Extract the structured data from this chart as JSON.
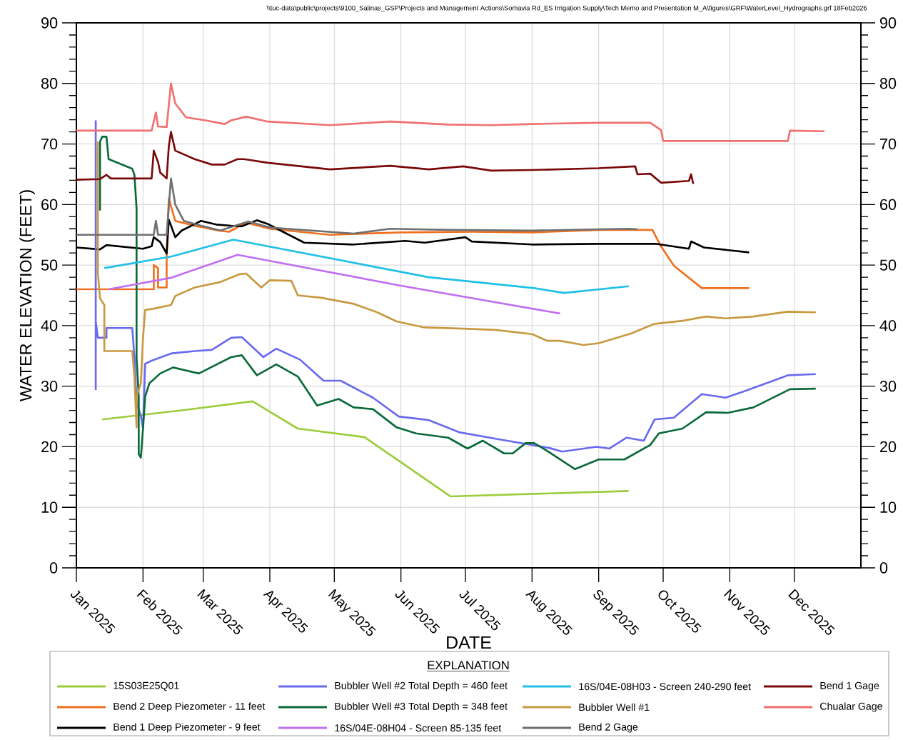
{
  "chart_data": {
    "type": "line",
    "xlabel": "DATE",
    "ylabel": "WATER ELEVATION (FEET)",
    "legend_title": "EXPLANATION",
    "legend": "bottom",
    "grid": true,
    "annotations": [
      "\\\\tuc-data\\public\\projects\\9100_Salinas_GSP\\Projects and Management Actions\\Somavia Rd_ES Irrigation Supply\\Tech Memo and Presentation M_A\\figures\\GRF\\WaterLevel_Hydrographs.grf 18Feb2026"
    ],
    "xlim": [
      "2025-01-01",
      "2026-01-01"
    ],
    "xticks": [
      {
        "value": "2025-01-01",
        "label": "Jan 2025"
      },
      {
        "value": "2025-02-01",
        "label": "Feb 2025"
      },
      {
        "value": "2025-03-01",
        "label": "Mar 2025"
      },
      {
        "value": "2025-04-01",
        "label": "Apr 2025"
      },
      {
        "value": "2025-05-01",
        "label": "May 2025"
      },
      {
        "value": "2025-06-01",
        "label": "Jun 2025"
      },
      {
        "value": "2025-07-01",
        "label": "Jul 2025"
      },
      {
        "value": "2025-08-01",
        "label": "Aug 2025"
      },
      {
        "value": "2025-09-01",
        "label": "Sep 2025"
      },
      {
        "value": "2025-10-01",
        "label": "Oct 2025"
      },
      {
        "value": "2025-11-01",
        "label": "Nov 2025"
      },
      {
        "value": "2025-12-01",
        "label": "Dec 2025"
      }
    ],
    "ylim": [
      0,
      90
    ],
    "yticks": [
      0,
      10,
      20,
      30,
      40,
      50,
      60,
      70,
      80,
      90
    ],
    "y2lim": [
      0,
      90
    ],
    "y2ticks": [
      0,
      10,
      20,
      30,
      40,
      50,
      60,
      70,
      80,
      90
    ],
    "series": [
      {
        "name": "15S03E25Q01",
        "color": "#9ccc3c",
        "x": [
          "2025-01-13",
          "2025-02-21",
          "2025-03-24",
          "2025-04-14",
          "2025-05-15",
          "2025-06-24",
          "2025-09-15"
        ],
        "values": [
          24.5,
          26.1,
          27.5,
          23.0,
          21.6,
          11.8,
          12.7
        ]
      },
      {
        "name": "Bend 2 Deep Piezometer - 11 feet",
        "color": "#f07020",
        "x": [
          "2025-01-01",
          "2025-02-06",
          "2025-02-06",
          "2025-02-08",
          "2025-02-08",
          "2025-02-12",
          "2025-02-12",
          "2025-02-13",
          "2025-02-16",
          "2025-02-25",
          "2025-03-08",
          "2025-03-13",
          "2025-03-21",
          "2025-04-01",
          "2025-04-29",
          "2025-06-01",
          "2025-07-04",
          "2025-08-01",
          "2025-09-01",
          "2025-09-26",
          "2025-09-30",
          "2025-10-06",
          "2025-10-19",
          "2025-11-10"
        ],
        "values": [
          46.0,
          46.0,
          50.0,
          49.5,
          46.3,
          46.3,
          51.5,
          61.0,
          57.3,
          56.5,
          55.7,
          55.5,
          57.0,
          56.0,
          55.0,
          55.4,
          55.5,
          55.4,
          55.8,
          55.8,
          53.1,
          49.9,
          46.2,
          46.2
        ]
      },
      {
        "name": "Bend 1 Deep Piezometer - 9 feet",
        "color": "#000000",
        "x": [
          "2025-01-01",
          "2025-01-12",
          "2025-01-15",
          "2025-02-01",
          "2025-02-05",
          "2025-02-06",
          "2025-02-09",
          "2025-02-12",
          "2025-02-13",
          "2025-02-16",
          "2025-02-19",
          "2025-02-28",
          "2025-03-07",
          "2025-03-14",
          "2025-03-19",
          "2025-03-26",
          "2025-03-31",
          "2025-04-17",
          "2025-05-10",
          "2025-06-03",
          "2025-06-12",
          "2025-07-01",
          "2025-07-04",
          "2025-08-01",
          "2025-09-01",
          "2025-09-28",
          "2025-10-13",
          "2025-10-14",
          "2025-10-20",
          "2025-11-10"
        ],
        "values": [
          52.9,
          52.6,
          53.3,
          52.7,
          53.1,
          54.6,
          53.8,
          51.9,
          57.5,
          54.6,
          55.7,
          57.3,
          56.7,
          56.5,
          56.4,
          57.4,
          56.8,
          53.7,
          53.4,
          54.0,
          53.7,
          54.6,
          53.9,
          53.4,
          53.5,
          53.5,
          52.7,
          53.9,
          52.9,
          52.1
        ]
      },
      {
        "name": "Bubbler Well #2 Total Depth = 460 feet",
        "color": "#6a6af0",
        "x": [
          "2025-01-10",
          "2025-01-10",
          "2025-01-10",
          "2025-01-11",
          "2025-01-15",
          "2025-01-15",
          "2025-01-27",
          "2025-01-28",
          "2025-01-29",
          "2025-01-31",
          "2025-02-01",
          "2025-02-02",
          "2025-02-05",
          "2025-02-14",
          "2025-02-25",
          "2025-03-05",
          "2025-03-14",
          "2025-03-19",
          "2025-03-29",
          "2025-04-04",
          "2025-04-15",
          "2025-04-26",
          "2025-05-04",
          "2025-05-19",
          "2025-05-31",
          "2025-06-14",
          "2025-06-28",
          "2025-07-17",
          "2025-08-09",
          "2025-08-15",
          "2025-08-31",
          "2025-09-06",
          "2025-09-14",
          "2025-09-22",
          "2025-09-27",
          "2025-10-06",
          "2025-10-19",
          "2025-10-30",
          "2025-11-08",
          "2025-11-28",
          "2025-12-11"
        ],
        "values": [
          73.9,
          29.5,
          40.7,
          38.0,
          38.0,
          39.6,
          39.6,
          34.8,
          27.2,
          25.1,
          23.0,
          33.7,
          34.2,
          35.4,
          35.8,
          36.0,
          38.0,
          38.1,
          34.8,
          36.2,
          34.4,
          30.9,
          30.9,
          28.1,
          25.0,
          24.4,
          22.4,
          21.2,
          19.8,
          19.2,
          20.0,
          19.7,
          21.5,
          21.0,
          24.5,
          24.8,
          28.7,
          28.1,
          29.2,
          31.8,
          32.0
        ]
      },
      {
        "name": "Bubbler Well #3 Total Depth = 348 feet",
        "color": "#0a6a3a",
        "x": [
          "2025-01-12",
          "2025-01-12",
          "2025-01-13",
          "2025-01-15",
          "2025-01-16",
          "2025-01-27",
          "2025-01-28",
          "2025-01-29",
          "2025-01-29",
          "2025-01-30",
          "2025-01-30",
          "2025-01-31",
          "2025-02-01",
          "2025-02-02",
          "2025-02-04",
          "2025-02-09",
          "2025-02-15",
          "2025-02-27",
          "2025-03-14",
          "2025-03-19",
          "2025-03-26",
          "2025-04-04",
          "2025-04-14",
          "2025-04-23",
          "2025-05-03",
          "2025-05-10",
          "2025-05-19",
          "2025-05-30",
          "2025-06-08",
          "2025-06-23",
          "2025-07-02",
          "2025-07-09",
          "2025-07-19",
          "2025-07-23",
          "2025-07-29",
          "2025-08-02",
          "2025-08-09",
          "2025-08-21",
          "2025-09-01",
          "2025-09-13",
          "2025-09-25",
          "2025-09-29",
          "2025-10-10",
          "2025-10-21",
          "2025-10-31",
          "2025-11-12",
          "2025-11-29",
          "2025-12-11"
        ],
        "values": [
          59.0,
          70.4,
          71.2,
          71.2,
          67.5,
          65.9,
          64.9,
          59.4,
          34.8,
          28.3,
          18.8,
          18.2,
          23.0,
          28.3,
          30.5,
          32.1,
          33.1,
          32.1,
          34.8,
          35.1,
          31.8,
          33.6,
          31.6,
          26.8,
          27.9,
          26.5,
          26.2,
          23.2,
          22.2,
          21.5,
          19.7,
          21.0,
          18.9,
          18.9,
          20.6,
          20.6,
          19.1,
          16.3,
          17.9,
          17.9,
          20.3,
          22.2,
          23.0,
          25.7,
          25.6,
          26.5,
          29.5,
          29.6
        ]
      },
      {
        "name": "16S/04E-08H04 - Screen 85-135 feet",
        "color": "#c070f0",
        "x": [
          "2025-01-16",
          "2025-02-14",
          "2025-03-17",
          "2025-06-01",
          "2025-08-14"
        ],
        "values": [
          46.0,
          47.9,
          51.7,
          46.6,
          42.0
        ]
      },
      {
        "name": "16S/04E-08H03 - Screen 240-290 feet",
        "color": "#20c0e8",
        "x": [
          "2025-01-14",
          "2025-02-14",
          "2025-03-15",
          "2025-06-14",
          "2025-08-02",
          "2025-08-16",
          "2025-09-15"
        ],
        "values": [
          49.5,
          51.4,
          54.2,
          48.0,
          46.2,
          45.4,
          46.5
        ]
      },
      {
        "name": "Bubbler Well #1",
        "color": "#c89a40",
        "x": [
          "2025-01-11",
          "2025-01-11",
          "2025-01-12",
          "2025-01-14",
          "2025-01-14",
          "2025-01-27",
          "2025-01-28",
          "2025-01-29",
          "2025-01-29",
          "2025-01-31",
          "2025-02-01",
          "2025-02-02",
          "2025-02-06",
          "2025-02-14",
          "2025-02-16",
          "2025-02-25",
          "2025-03-09",
          "2025-03-18",
          "2025-03-21",
          "2025-03-28",
          "2025-04-01",
          "2025-04-11",
          "2025-04-14",
          "2025-04-25",
          "2025-05-10",
          "2025-05-21",
          "2025-05-30",
          "2025-06-12",
          "2025-06-30",
          "2025-07-15",
          "2025-08-01",
          "2025-08-08",
          "2025-08-14",
          "2025-08-25",
          "2025-09-01",
          "2025-09-16",
          "2025-09-27",
          "2025-10-10",
          "2025-10-21",
          "2025-10-30",
          "2025-11-12",
          "2025-11-28",
          "2025-12-11"
        ],
        "values": [
          70.4,
          48.7,
          44.5,
          43.4,
          35.8,
          35.8,
          31.6,
          23.2,
          28.3,
          30.5,
          38.0,
          42.6,
          42.8,
          43.4,
          44.9,
          46.3,
          47.2,
          48.5,
          48.6,
          46.3,
          47.5,
          47.4,
          45.0,
          44.6,
          43.6,
          42.2,
          40.7,
          39.7,
          39.5,
          39.3,
          38.6,
          37.5,
          37.5,
          36.8,
          37.1,
          38.7,
          40.3,
          40.8,
          41.5,
          41.2,
          41.5,
          42.3,
          42.2
        ]
      },
      {
        "name": "Bend 2 Gage",
        "color": "#707070",
        "x": [
          "2025-01-01",
          "2025-02-06",
          "2025-02-07",
          "2025-02-08",
          "2025-02-12",
          "2025-02-14",
          "2025-02-16",
          "2025-02-20",
          "2025-02-28",
          "2025-03-09",
          "2025-03-22",
          "2025-04-01",
          "2025-05-10",
          "2025-05-27",
          "2025-06-23",
          "2025-08-01",
          "2025-09-15",
          "2025-09-19"
        ],
        "values": [
          55.0,
          55.0,
          57.3,
          55.0,
          55.0,
          64.3,
          60.0,
          57.3,
          56.5,
          55.7,
          57.2,
          56.2,
          55.2,
          56.0,
          55.8,
          55.7,
          56.0,
          55.9
        ]
      },
      {
        "name": "Bend 1 Gage",
        "color": "#7a0a0a",
        "x": [
          "2025-01-01",
          "2025-01-12",
          "2025-01-15",
          "2025-01-17",
          "2025-02-05",
          "2025-02-06",
          "2025-02-08",
          "2025-02-09",
          "2025-02-12",
          "2025-02-13",
          "2025-02-14",
          "2025-02-16",
          "2025-02-25",
          "2025-03-05",
          "2025-03-11",
          "2025-03-17",
          "2025-03-20",
          "2025-03-31",
          "2025-04-29",
          "2025-05-27",
          "2025-06-14",
          "2025-06-30",
          "2025-07-13",
          "2025-08-01",
          "2025-09-01",
          "2025-09-18",
          "2025-09-19",
          "2025-09-25",
          "2025-09-30",
          "2025-10-13",
          "2025-10-14",
          "2025-10-15"
        ],
        "values": [
          64.1,
          64.2,
          64.9,
          64.3,
          64.3,
          68.9,
          67.0,
          65.3,
          64.3,
          69.6,
          72.0,
          68.9,
          67.5,
          66.6,
          66.6,
          67.5,
          67.5,
          66.9,
          65.8,
          66.4,
          65.8,
          66.3,
          65.6,
          65.7,
          66.0,
          66.3,
          65.0,
          65.1,
          63.6,
          63.9,
          65.0,
          63.4
        ]
      },
      {
        "name": "Chualar Gage",
        "color": "#f07070",
        "x": [
          "2025-01-01",
          "2025-02-05",
          "2025-02-07",
          "2025-02-08",
          "2025-02-12",
          "2025-02-14",
          "2025-02-16",
          "2025-02-21",
          "2025-03-02",
          "2025-03-11",
          "2025-03-14",
          "2025-03-21",
          "2025-03-31",
          "2025-04-29",
          "2025-05-27",
          "2025-06-23",
          "2025-07-13",
          "2025-08-01",
          "2025-09-01",
          "2025-09-25",
          "2025-09-30",
          "2025-10-01",
          "2025-11-28",
          "2025-11-29",
          "2025-12-15"
        ],
        "values": [
          72.2,
          72.2,
          75.2,
          72.9,
          72.8,
          80.0,
          76.7,
          74.4,
          73.9,
          73.3,
          73.9,
          74.5,
          73.7,
          73.1,
          73.7,
          73.2,
          73.1,
          73.3,
          73.5,
          73.5,
          72.3,
          70.5,
          70.5,
          72.2,
          72.1
        ]
      }
    ]
  }
}
